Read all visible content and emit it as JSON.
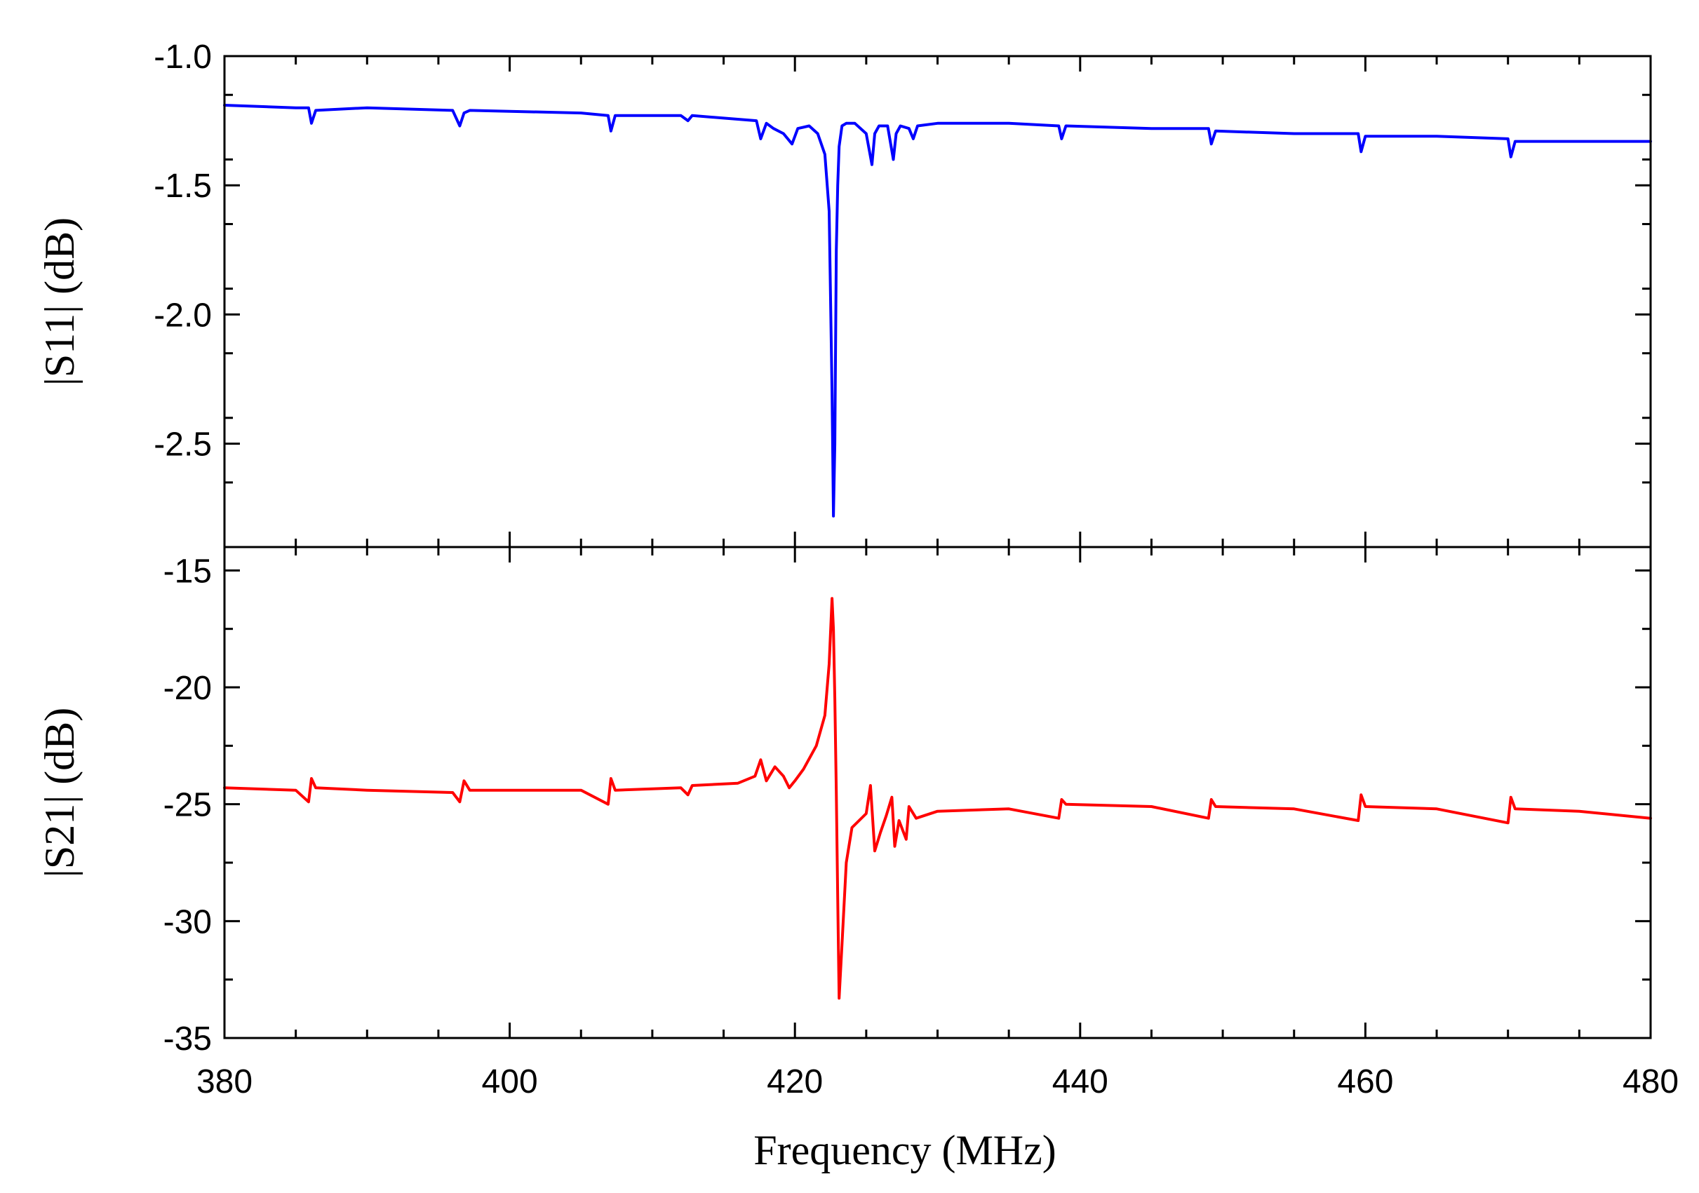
{
  "chart_data": [
    {
      "type": "line",
      "name": "s11-panel",
      "ylabel": "|S11| (dB)",
      "xlabel": "",
      "xlim": [
        380,
        480
      ],
      "ylim": [
        -2.9,
        -1.0
      ],
      "yticks": [
        -1.0,
        -1.5,
        -2.0,
        -2.5
      ],
      "ytick_labels": [
        "-1.0",
        "-1.5",
        "-2.0",
        "-2.5"
      ],
      "series": [
        {
          "name": "|S11|",
          "color": "#0000ff",
          "x": [
            380,
            385,
            385.9,
            386.1,
            386.4,
            390,
            396,
            396.5,
            396.8,
            397.2,
            405,
            406.9,
            407.1,
            407.4,
            412,
            412.5,
            412.8,
            415,
            417.3,
            417.6,
            418,
            418.5,
            419.2,
            419.8,
            420.2,
            421,
            421.6,
            422.1,
            422.4,
            422.6,
            422.7,
            422.8,
            422.9,
            423.0,
            423.1,
            423.3,
            423.6,
            424.2,
            425,
            425.4,
            425.6,
            425.9,
            426.5,
            426.9,
            427.1,
            427.4,
            428,
            428.3,
            428.6,
            430,
            435,
            438.5,
            438.7,
            439,
            445,
            449,
            449.2,
            449.5,
            455,
            459.5,
            459.7,
            460,
            465,
            470,
            470.2,
            470.5,
            475,
            480
          ],
          "y": [
            -1.19,
            -1.2,
            -1.2,
            -1.26,
            -1.21,
            -1.2,
            -1.21,
            -1.27,
            -1.22,
            -1.21,
            -1.22,
            -1.23,
            -1.29,
            -1.23,
            -1.23,
            -1.25,
            -1.23,
            -1.24,
            -1.25,
            -1.32,
            -1.26,
            -1.28,
            -1.3,
            -1.34,
            -1.28,
            -1.27,
            -1.3,
            -1.38,
            -1.6,
            -2.3,
            -2.78,
            -2.5,
            -1.75,
            -1.5,
            -1.35,
            -1.27,
            -1.26,
            -1.26,
            -1.3,
            -1.42,
            -1.3,
            -1.27,
            -1.27,
            -1.4,
            -1.3,
            -1.27,
            -1.28,
            -1.32,
            -1.27,
            -1.26,
            -1.26,
            -1.27,
            -1.32,
            -1.27,
            -1.28,
            -1.28,
            -1.34,
            -1.29,
            -1.3,
            -1.3,
            -1.37,
            -1.31,
            -1.31,
            -1.32,
            -1.39,
            -1.33,
            -1.33,
            -1.33
          ]
        }
      ]
    },
    {
      "type": "line",
      "name": "s21-panel",
      "ylabel": "|S21| (dB)",
      "xlabel": "Frequency (MHz)",
      "xlim": [
        380,
        480
      ],
      "ylim": [
        -35,
        -14
      ],
      "xticks": [
        380,
        400,
        420,
        440,
        460,
        480
      ],
      "xtick_labels": [
        "380",
        "400",
        "420",
        "440",
        "460",
        "480"
      ],
      "yticks": [
        -15,
        -20,
        -25,
        -30,
        -35
      ],
      "ytick_labels": [
        "-15",
        "-20",
        "-25",
        "-30",
        "-35"
      ],
      "series": [
        {
          "name": "|S21|",
          "color": "#ff0000",
          "x": [
            380,
            385,
            385.9,
            386.1,
            386.4,
            390,
            396,
            396.5,
            396.8,
            397.2,
            405,
            406.9,
            407.1,
            407.4,
            412,
            412.5,
            412.8,
            416,
            417.2,
            417.6,
            418,
            418.6,
            419.2,
            419.6,
            420,
            420.6,
            421.5,
            422.1,
            422.4,
            422.6,
            422.7,
            422.8,
            422.9,
            423.0,
            423.1,
            423.3,
            423.6,
            424,
            425,
            425.3,
            425.6,
            426,
            426.4,
            426.8,
            427,
            427.3,
            427.8,
            428,
            428.5,
            430,
            435,
            438.5,
            438.7,
            439,
            445,
            449,
            449.2,
            449.5,
            455,
            459.5,
            459.7,
            460,
            465,
            470,
            470.2,
            470.5,
            475,
            480
          ],
          "y": [
            -24.3,
            -24.4,
            -24.9,
            -23.9,
            -24.3,
            -24.4,
            -24.5,
            -24.9,
            -24.0,
            -24.4,
            -24.4,
            -25.0,
            -23.9,
            -24.4,
            -24.3,
            -24.6,
            -24.2,
            -24.1,
            -23.8,
            -23.1,
            -24.0,
            -23.4,
            -23.8,
            -24.3,
            -24.0,
            -23.5,
            -22.5,
            -21.2,
            -19.0,
            -16.2,
            -17.5,
            -20.5,
            -24.5,
            -29.0,
            -33.3,
            -31.0,
            -27.5,
            -26.0,
            -25.4,
            -24.2,
            -27.0,
            -26.2,
            -25.5,
            -24.7,
            -26.8,
            -25.7,
            -26.5,
            -25.1,
            -25.6,
            -25.3,
            -25.2,
            -25.6,
            -24.8,
            -25.0,
            -25.1,
            -25.6,
            -24.8,
            -25.1,
            -25.2,
            -25.7,
            -24.6,
            -25.1,
            -25.2,
            -25.8,
            -24.7,
            -25.2,
            -25.3,
            -25.6
          ]
        }
      ]
    }
  ]
}
